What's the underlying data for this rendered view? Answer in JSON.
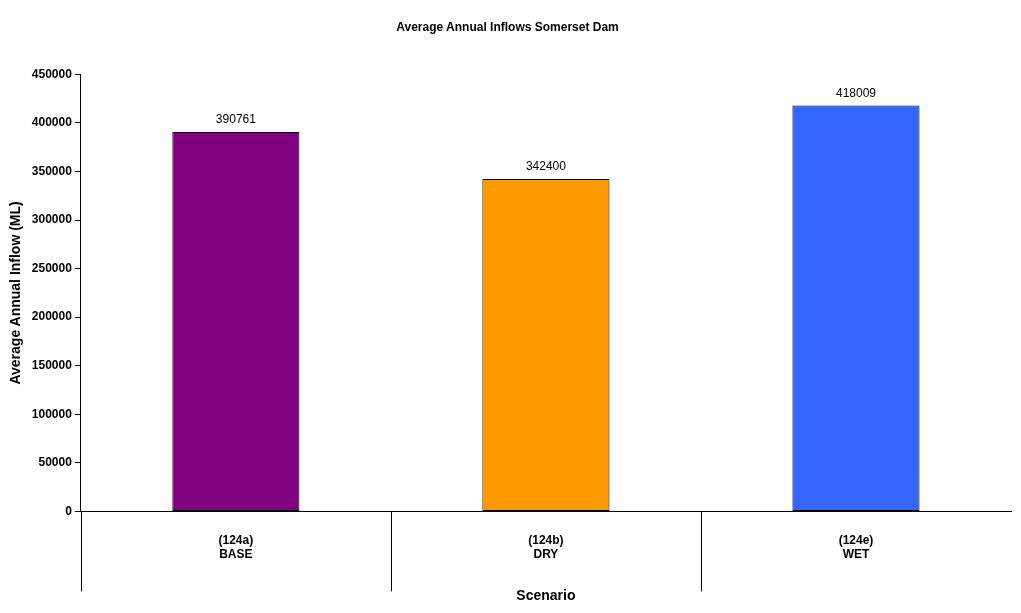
{
  "chart_data": {
    "type": "bar",
    "title": "Average Annual Inflows Somerset Dam",
    "xlabel": "Scenario",
    "ylabel": "Average Annual Inflow (ML)",
    "categories": [
      "(124a)\nBASE",
      "(124b)\nDRY",
      "(124e)\nWET"
    ],
    "values": [
      390761,
      342400,
      418009
    ],
    "colors": [
      "#800080",
      "#ff9900",
      "#3366ff"
    ],
    "ylim": [
      0,
      450000
    ],
    "yticks": [
      0,
      50000,
      100000,
      150000,
      200000,
      250000,
      300000,
      350000,
      400000,
      450000
    ],
    "data_labels": true,
    "grid": false,
    "legend": false
  }
}
